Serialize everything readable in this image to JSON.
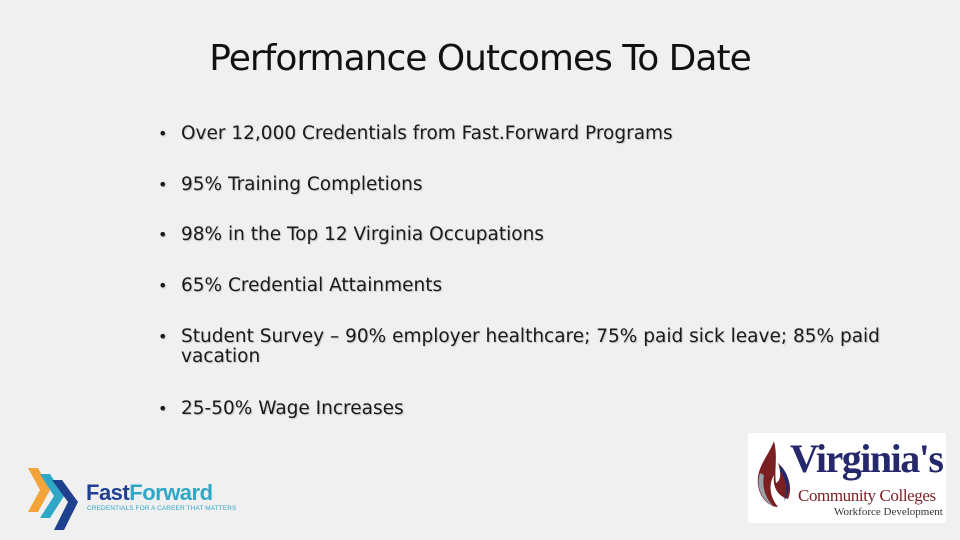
{
  "slide": {
    "title": "Performance Outcomes To Date",
    "bullet_glyph": "•",
    "bullets": [
      "Over 12,000 Credentials from Fast.Forward Programs",
      "95% Training Completions",
      "98% in the Top 12 Virginia Occupations",
      "65% Credential Attainments",
      "Student Survey – 90% employer healthcare; 75% paid sick leave; 85% paid vacation",
      "25-50% Wage Increases"
    ]
  },
  "logos": {
    "fastforward": {
      "name_part1": "Fast",
      "name_part2": "Forward",
      "tagline": "CREDENTIALS FOR A CAREER THAT MATTERS",
      "colors": {
        "dark": "#1f3f8f",
        "light": "#2fa8c8",
        "accent": "#f2a33a"
      }
    },
    "vccs": {
      "name": "Virginia's",
      "subtitle": "Community Colleges",
      "division": "Workforce Development",
      "colors": {
        "navy": "#25286b",
        "maroon": "#7a1f22"
      }
    }
  }
}
